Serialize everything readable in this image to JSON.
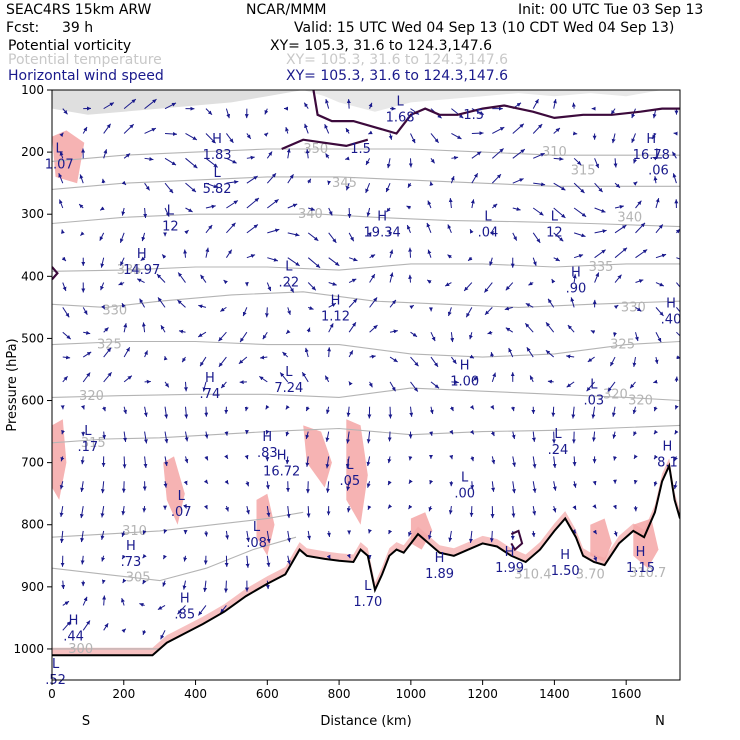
{
  "header": {
    "model": "SEAC4RS 15km ARW",
    "org": "NCAR/MMM",
    "init": "Init: 00 UTC Tue 03 Sep 13",
    "fcst_label": "Fcst:",
    "fcst_value": "39 h",
    "valid": "Valid: 15 UTC Wed 04 Sep 13 (10 CDT Wed 04 Sep 13)"
  },
  "fields": [
    {
      "name": "Potential vorticity",
      "xy": "XY= 105.3, 31.6 to 124.3,147.6",
      "color": "#000000"
    },
    {
      "name": "Potential temperature",
      "xy": "XY= 105.3, 31.6 to 124.3,147.6",
      "color": "#c8c8c8"
    },
    {
      "name": "Horizontal wind speed",
      "xy": "XY= 105.3, 31.6 to 124.3,147.6",
      "color": "#1a1a8c"
    }
  ],
  "chart_data": {
    "type": "cross-section",
    "xlabel": "Distance (km)",
    "ylabel": "Pressure (hPa)",
    "xlim": [
      0,
      1750
    ],
    "ylim": [
      1050,
      100
    ],
    "x_ticks": [
      0,
      200,
      400,
      600,
      800,
      1000,
      1200,
      1400,
      1600
    ],
    "y_ticks": [
      100,
      200,
      300,
      400,
      500,
      600,
      700,
      800,
      900,
      1000
    ],
    "x_end_labels": {
      "left": "S",
      "right": "N"
    },
    "colors": {
      "pv": "#3c0a3c",
      "theta": "#b4b4b4",
      "wind": "#1a1a8c",
      "pv_shade": "#f4a6a6"
    },
    "theta_isentropes": [
      {
        "label": "300",
        "points": [
          [
            0,
            1000
          ],
          [
            100,
            1000
          ],
          [
            200,
            1000
          ],
          [
            300,
            1000
          ]
        ],
        "label_at": [
          80,
          1000
        ]
      },
      {
        "label": "305",
        "points": [
          [
            0,
            870
          ],
          [
            150,
            880
          ],
          [
            300,
            890
          ],
          [
            430,
            870
          ],
          [
            560,
            840
          ],
          [
            680,
            820
          ]
        ],
        "label_at": [
          240,
          885
        ]
      },
      {
        "label": "310",
        "points": [
          [
            0,
            820
          ],
          [
            150,
            815
          ],
          [
            300,
            810
          ],
          [
            450,
            800
          ],
          [
            600,
            790
          ],
          [
            700,
            780
          ]
        ],
        "label_at": [
          230,
          810
        ]
      },
      {
        "label": "315",
        "points": [
          [
            0,
            668
          ],
          [
            150,
            662
          ],
          [
            300,
            660
          ],
          [
            450,
            655
          ],
          [
            600,
            650
          ],
          [
            800,
            645
          ],
          [
            1000,
            655
          ],
          [
            1200,
            650
          ],
          [
            1400,
            648
          ],
          [
            1750,
            640
          ]
        ],
        "label_at": [
          115,
          668
        ]
      },
      {
        "label": "320",
        "points": [
          [
            0,
            595
          ],
          [
            200,
            592
          ],
          [
            400,
            590
          ],
          [
            600,
            590
          ],
          [
            800,
            595
          ],
          [
            1000,
            580
          ],
          [
            1200,
            585
          ],
          [
            1400,
            590
          ],
          [
            1600,
            595
          ],
          [
            1750,
            600
          ]
        ],
        "label_at": [
          110,
          593
        ]
      },
      {
        "label": "325",
        "points": [
          [
            0,
            510
          ],
          [
            200,
            505
          ],
          [
            400,
            505
          ],
          [
            600,
            510
          ],
          [
            800,
            510
          ],
          [
            1000,
            525
          ],
          [
            1200,
            530
          ],
          [
            1400,
            525
          ],
          [
            1600,
            510
          ],
          [
            1750,
            505
          ]
        ],
        "label_at": [
          160,
          510
        ]
      },
      {
        "label": "330",
        "points": [
          [
            0,
            445
          ],
          [
            150,
            450
          ],
          [
            300,
            440
          ],
          [
            500,
            430
          ],
          [
            700,
            425
          ],
          [
            900,
            440
          ],
          [
            1100,
            445
          ],
          [
            1300,
            450
          ],
          [
            1500,
            445
          ],
          [
            1750,
            440
          ]
        ],
        "label_at": [
          175,
          455
        ]
      },
      {
        "label": "335",
        "points": [
          [
            0,
            392
          ],
          [
            200,
            390
          ],
          [
            400,
            385
          ],
          [
            600,
            385
          ],
          [
            800,
            390
          ],
          [
            1000,
            380
          ],
          [
            1200,
            380
          ],
          [
            1400,
            385
          ],
          [
            1600,
            380
          ],
          [
            1750,
            380
          ]
        ],
        "label_at": [
          215,
          390
        ]
      },
      {
        "label": "340",
        "points": [
          [
            0,
            315
          ],
          [
            200,
            305
          ],
          [
            400,
            300
          ],
          [
            600,
            300
          ],
          [
            750,
            300
          ],
          [
            900,
            305
          ],
          [
            1100,
            310
          ],
          [
            1300,
            312
          ],
          [
            1500,
            315
          ],
          [
            1750,
            320
          ]
        ],
        "label_at": [
          720,
          300
        ]
      },
      {
        "label": "345",
        "points": [
          [
            0,
            260
          ],
          [
            200,
            250
          ],
          [
            400,
            245
          ],
          [
            600,
            240
          ],
          [
            800,
            240
          ],
          [
            1000,
            245
          ],
          [
            1200,
            250
          ],
          [
            1400,
            255
          ],
          [
            1600,
            255
          ],
          [
            1750,
            255
          ]
        ],
        "label_at": [
          815,
          250
        ]
      },
      {
        "label": "350",
        "points": [
          [
            0,
            215
          ],
          [
            200,
            205
          ],
          [
            400,
            200
          ],
          [
            600,
            195
          ],
          [
            800,
            195
          ],
          [
            1000,
            195
          ],
          [
            1200,
            200
          ],
          [
            1400,
            205
          ],
          [
            1600,
            205
          ],
          [
            1750,
            205
          ]
        ],
        "label_at": [
          735,
          195
        ]
      }
    ],
    "theta_label_extra": [
      {
        "label": "310.4",
        "at": [
          1340,
          880
        ]
      },
      {
        "label": "3.70",
        "at": [
          1500,
          880
        ]
      },
      {
        "label": "310.7",
        "at": [
          1660,
          878
        ]
      },
      {
        "label": "310",
        "at": [
          1400,
          200
        ]
      },
      {
        "label": "315",
        "at": [
          1480,
          230
        ]
      },
      {
        "label": "340",
        "at": [
          1610,
          305
        ]
      },
      {
        "label": "335",
        "at": [
          1530,
          385
        ]
      },
      {
        "label": "330",
        "at": [
          1620,
          450
        ]
      },
      {
        "label": "325",
        "at": [
          1590,
          510
        ]
      },
      {
        "label": "320",
        "at": [
          1570,
          590
        ]
      },
      {
        "label": "320",
        "at": [
          1640,
          600
        ]
      }
    ],
    "hl_markers": [
      {
        "label": "L",
        "value": "1.68",
        "x": 970,
        "y": 135
      },
      {
        "label": "H",
        "value": "1.83",
        "x": 460,
        "y": 195
      },
      {
        "label": "L",
        "value": "5.82",
        "x": 460,
        "y": 250
      },
      {
        "label": "H",
        "value": "16.78",
        "x": 1670,
        "y": 195
      },
      {
        "label": "L",
        "value": ".06",
        "x": 1690,
        "y": 220
      },
      {
        "label": "L",
        "value": "1.07",
        "x": 20,
        "y": 210
      },
      {
        "label": "L",
        "value": "12",
        "x": 330,
        "y": 310
      },
      {
        "label": "H",
        "value": "19.34",
        "x": 920,
        "y": 320
      },
      {
        "label": "L",
        "value": ".04",
        "x": 1215,
        "y": 320
      },
      {
        "label": "L",
        "value": "12",
        "x": 1400,
        "y": 320
      },
      {
        "label": "H",
        "value": "14.97",
        "x": 250,
        "y": 380
      },
      {
        "label": "L",
        "value": ".22",
        "x": 660,
        "y": 400
      },
      {
        "label": "H",
        "value": "1.12",
        "x": 790,
        "y": 455
      },
      {
        "label": "H",
        "value": ".90",
        "x": 1460,
        "y": 410
      },
      {
        "label": "H",
        "value": ".40",
        "x": 1725,
        "y": 460
      },
      {
        "label": "H",
        "value": ".74",
        "x": 440,
        "y": 580
      },
      {
        "label": "L",
        "value": "7.24",
        "x": 660,
        "y": 570
      },
      {
        "label": "H",
        "value": "1.00",
        "x": 1150,
        "y": 560
      },
      {
        "label": "L",
        "value": ".03",
        "x": 1510,
        "y": 590
      },
      {
        "label": "L",
        "value": ".17",
        "x": 100,
        "y": 665
      },
      {
        "label": "H",
        "value": ".83",
        "x": 600,
        "y": 675
      },
      {
        "label": "H",
        "value": "16.72",
        "x": 640,
        "y": 705
      },
      {
        "label": "L",
        "value": ".05",
        "x": 830,
        "y": 720
      },
      {
        "label": "L",
        "value": ".24",
        "x": 1410,
        "y": 670
      },
      {
        "label": "H",
        "value": "8.1",
        "x": 1715,
        "y": 690
      },
      {
        "label": "L",
        "value": ".00",
        "x": 1150,
        "y": 740
      },
      {
        "label": "L",
        "value": ".07",
        "x": 360,
        "y": 770
      },
      {
        "label": "L",
        "value": ".08",
        "x": 570,
        "y": 820
      },
      {
        "label": "H",
        "value": ".73",
        "x": 220,
        "y": 850
      },
      {
        "label": "H",
        "value": "1.99",
        "x": 1275,
        "y": 860
      },
      {
        "label": "H",
        "value": "1.89",
        "x": 1080,
        "y": 870
      },
      {
        "label": "H",
        "value": "1.50",
        "x": 1430,
        "y": 865
      },
      {
        "label": "H",
        "value": "1.15",
        "x": 1640,
        "y": 860
      },
      {
        "label": "L",
        "value": "1.70",
        "x": 880,
        "y": 915
      },
      {
        "label": "H",
        "value": ".85",
        "x": 370,
        "y": 935
      },
      {
        "label": "H",
        "value": ".44",
        "x": 60,
        "y": 970
      },
      {
        "label": "L",
        "value": ".52",
        "x": 10,
        "y": 1040
      }
    ],
    "pv_contours": [
      {
        "value": "1.5",
        "label_at": [
          1175,
          140
        ],
        "points": [
          [
            700,
            1
          ],
          [
            740,
            140
          ],
          [
            780,
            150
          ],
          [
            840,
            150
          ],
          [
            900,
            160
          ],
          [
            960,
            170
          ],
          [
            1000,
            140
          ],
          [
            1040,
            130
          ],
          [
            1080,
            140
          ],
          [
            1130,
            140
          ],
          [
            1200,
            130
          ],
          [
            1260,
            125
          ],
          [
            1340,
            135
          ],
          [
            1400,
            145
          ],
          [
            1480,
            140
          ],
          [
            1560,
            140
          ],
          [
            1640,
            135
          ],
          [
            1700,
            130
          ],
          [
            1750,
            130
          ]
        ]
      },
      {
        "value": "1.5",
        "label_at": [
          860,
          195
        ],
        "points": [
          [
            640,
            195
          ],
          [
            700,
            180
          ],
          [
            760,
            185
          ],
          [
            820,
            190
          ],
          [
            880,
            180
          ]
        ]
      }
    ],
    "topography": [
      [
        0,
        1010
      ],
      [
        100,
        1010
      ],
      [
        200,
        1010
      ],
      [
        280,
        1010
      ],
      [
        320,
        990
      ],
      [
        370,
        975
      ],
      [
        420,
        960
      ],
      [
        480,
        940
      ],
      [
        540,
        915
      ],
      [
        600,
        895
      ],
      [
        650,
        880
      ],
      [
        690,
        840
      ],
      [
        710,
        850
      ],
      [
        760,
        855
      ],
      [
        800,
        858
      ],
      [
        840,
        860
      ],
      [
        860,
        840
      ],
      [
        880,
        850
      ],
      [
        900,
        905
      ],
      [
        920,
        880
      ],
      [
        940,
        850
      ],
      [
        960,
        840
      ],
      [
        980,
        845
      ],
      [
        1000,
        830
      ],
      [
        1020,
        815
      ],
      [
        1050,
        830
      ],
      [
        1080,
        845
      ],
      [
        1120,
        850
      ],
      [
        1160,
        840
      ],
      [
        1200,
        830
      ],
      [
        1240,
        835
      ],
      [
        1280,
        850
      ],
      [
        1320,
        860
      ],
      [
        1360,
        840
      ],
      [
        1400,
        810
      ],
      [
        1430,
        790
      ],
      [
        1460,
        820
      ],
      [
        1480,
        850
      ],
      [
        1510,
        860
      ],
      [
        1540,
        865
      ],
      [
        1580,
        830
      ],
      [
        1620,
        810
      ],
      [
        1650,
        820
      ],
      [
        1680,
        780
      ],
      [
        1700,
        730
      ],
      [
        1720,
        705
      ],
      [
        1735,
        760
      ],
      [
        1750,
        790
      ]
    ]
  }
}
